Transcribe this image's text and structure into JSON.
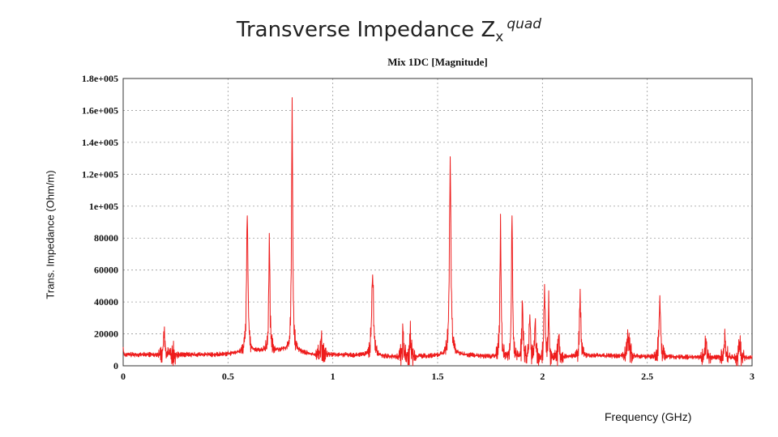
{
  "slide": {
    "title_main": "Transverse Impedance Z",
    "title_sub": "x",
    "title_sup": "quad"
  },
  "chart_data": {
    "type": "line",
    "title": "Mix 1DC [Magnitude]",
    "xlabel": "Frequency (GHz)",
    "ylabel": "Trans. Impedance (Ohm/m)",
    "xlim": [
      0,
      3
    ],
    "ylim": [
      0,
      180000
    ],
    "xticks": [
      0,
      0.5,
      1,
      1.5,
      2,
      2.5,
      3
    ],
    "xtick_labels": [
      "0",
      "0.5",
      "1",
      "1.5",
      "2",
      "2.5",
      "3"
    ],
    "yticks": [
      0,
      20000,
      40000,
      60000,
      80000,
      100000,
      120000,
      140000,
      160000,
      180000
    ],
    "ytick_labels": [
      "0",
      "20000",
      "40000",
      "60000",
      "80000",
      "1e+005",
      "1.2e+005",
      "1.4e+005",
      "1.6e+005",
      "1.8e+005"
    ],
    "grid": true,
    "line_color": "#ee1c1c",
    "series": [
      {
        "baseline": [
          [
            0,
            11000
          ],
          [
            0.005,
            7000
          ],
          [
            0.3,
            7000
          ],
          [
            0.45,
            7000
          ],
          [
            0.55,
            8000
          ],
          [
            0.6,
            9000
          ],
          [
            0.8,
            10000
          ],
          [
            0.9,
            7000
          ],
          [
            1.0,
            7000
          ],
          [
            1.15,
            6500
          ],
          [
            1.3,
            5500
          ],
          [
            1.45,
            6000
          ],
          [
            1.6,
            7000
          ],
          [
            1.8,
            5000
          ],
          [
            2.0,
            4000
          ],
          [
            2.2,
            6500
          ],
          [
            2.5,
            5500
          ],
          [
            2.6,
            5500
          ],
          [
            3.0,
            5000
          ]
        ],
        "peaks": [
          [
            0.195,
            17500,
            0.004
          ],
          [
            0.237,
            10000,
            0.003
          ],
          [
            0.592,
            94000,
            0.004
          ],
          [
            0.697,
            83000,
            0.003
          ],
          [
            0.806,
            168000,
            0.003
          ],
          [
            0.945,
            17000,
            0.003
          ],
          [
            1.19,
            57000,
            0.005
          ],
          [
            1.335,
            21000,
            0.003
          ],
          [
            1.37,
            28000,
            0.002
          ],
          [
            1.56,
            131000,
            0.004
          ],
          [
            1.8,
            95000,
            0.003
          ],
          [
            1.855,
            94000,
            0.003
          ],
          [
            1.905,
            39000,
            0.003
          ],
          [
            1.94,
            32000,
            0.003
          ],
          [
            1.965,
            27000,
            0.003
          ],
          [
            2.01,
            51000,
            0.003
          ],
          [
            2.03,
            47000,
            0.002
          ],
          [
            2.078,
            19000,
            0.003
          ],
          [
            2.18,
            48000,
            0.003
          ],
          [
            2.41,
            18000,
            0.006
          ],
          [
            2.56,
            44000,
            0.004
          ],
          [
            2.78,
            17000,
            0.003
          ],
          [
            2.87,
            23000,
            0.003
          ],
          [
            2.94,
            15000,
            0.003
          ]
        ]
      }
    ]
  }
}
